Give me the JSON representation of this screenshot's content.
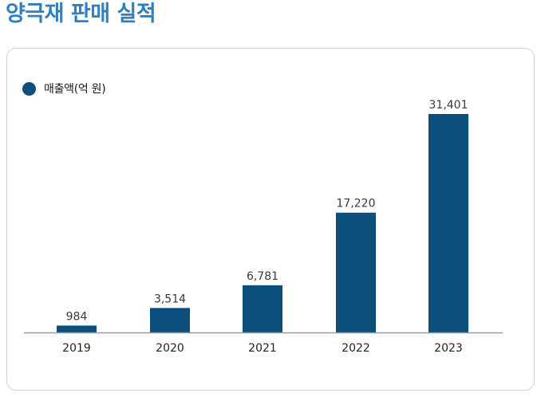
{
  "page": {
    "title": "양극재 판매 실적"
  },
  "chart_data": {
    "type": "bar",
    "categories": [
      "2019",
      "2020",
      "2021",
      "2022",
      "2023"
    ],
    "series": [
      {
        "name": "매출액(억 원)",
        "values": [
          984,
          3514,
          6781,
          17220,
          31401
        ],
        "color": "#0c4f7c"
      }
    ],
    "value_labels": [
      "984",
      "3,514",
      "6,781",
      "17,220",
      "31,401"
    ],
    "ylim": [
      0,
      34000
    ],
    "legend_position": "top-left",
    "grid": false,
    "title": "",
    "xlabel": "",
    "ylabel": ""
  }
}
